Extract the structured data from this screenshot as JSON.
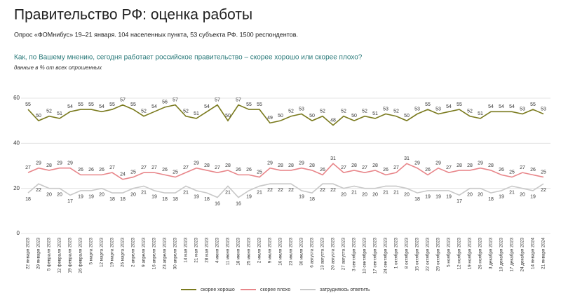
{
  "chart_data": {
    "type": "line",
    "title": "Правительство РФ: оценка работы",
    "subtitle": "Опрос «ФОМнибус» 19–21 января. 104 населенных пункта, 53 субъекта РФ. 1500 респондентов.",
    "question": "Как, по Вашему мнению, сегодня работает российское правительство – скорее хорошо или скорее плохо?",
    "note": "данные в % от всех опрошенных",
    "categories": [
      "22 января 2023",
      "29 января 2023",
      "5 февраля 2023",
      "12 февраля 2023",
      "19 февраля 2023",
      "26 февраля 2023",
      "5 марта 2023",
      "12 марта 2023",
      "19 марта 2023",
      "26 марта 2023",
      "2 апреля 2023",
      "9 апреля 2023",
      "16 апреля 2023",
      "23 апреля 2023",
      "30 апреля 2023",
      "14 мая 2023",
      "21 мая 2023",
      "28 мая 2023",
      "4 июня 2023",
      "11 июня 2023",
      "18 июня 2023",
      "25 июня 2023",
      "2 июля 2023",
      "9 июля 2023",
      "16 июля 2023",
      "23 июля 2023",
      "30 июля 2023",
      "6 августа 2023",
      "13 августа 2023",
      "20 августа 2023",
      "27 августа 2023",
      "3 сентября 2023",
      "10 сентября 2023",
      "17 сентября 2023",
      "24 сентября 2023",
      "1 октября 2023",
      "8 октября 2023",
      "15 октября 2023",
      "22 октября 2023",
      "29 октября 2023",
      "5 ноября 2023",
      "12 ноября 2023",
      "19 ноября 2023",
      "26 ноября 2023",
      "3 декабря 2023",
      "10 декабря 2023",
      "17 декабря 2023",
      "24 декабря 2023",
      "14 января 2024",
      "21 января 2024"
    ],
    "series": [
      {
        "name": "скорее хорошо",
        "color": "#7a7a1e",
        "values": [
          55,
          50,
          52,
          51,
          54,
          55,
          55,
          54,
          55,
          57,
          55,
          52,
          54,
          56,
          57,
          52,
          51,
          54,
          57,
          50,
          57,
          55,
          55,
          49,
          50,
          52,
          53,
          50,
          52,
          48,
          52,
          50,
          52,
          51,
          53,
          52,
          50,
          53,
          55,
          53,
          54,
          55,
          52,
          51,
          54,
          54,
          54,
          53,
          55,
          53
        ]
      },
      {
        "name": "скорее плохо",
        "color": "#e8868a",
        "values": [
          27,
          29,
          28,
          29,
          29,
          26,
          26,
          26,
          27,
          24,
          25,
          27,
          27,
          26,
          25,
          27,
          29,
          28,
          27,
          28,
          26,
          26,
          25,
          29,
          28,
          28,
          29,
          28,
          26,
          31,
          27,
          28,
          27,
          28,
          26,
          27,
          31,
          29,
          26,
          29,
          27,
          28,
          28,
          29,
          28,
          26,
          25,
          27,
          26,
          25
        ]
      },
      {
        "name": "затрудняюсь ответить",
        "color": "#c8c8c8",
        "values": [
          18,
          22,
          20,
          20,
          17,
          19,
          19,
          20,
          18,
          18,
          20,
          21,
          19,
          18,
          18,
          21,
          19,
          18,
          16,
          21,
          16,
          19,
          21,
          22,
          22,
          22,
          19,
          18,
          22,
          22,
          20,
          21,
          20,
          20,
          21,
          21,
          20,
          18,
          19,
          19,
          19,
          17,
          20,
          20,
          18,
          19,
          21,
          20,
          19,
          22
        ]
      }
    ],
    "ylim": [
      0,
      60
    ],
    "yticks": [
      0,
      20,
      40,
      60
    ],
    "grid": true
  }
}
